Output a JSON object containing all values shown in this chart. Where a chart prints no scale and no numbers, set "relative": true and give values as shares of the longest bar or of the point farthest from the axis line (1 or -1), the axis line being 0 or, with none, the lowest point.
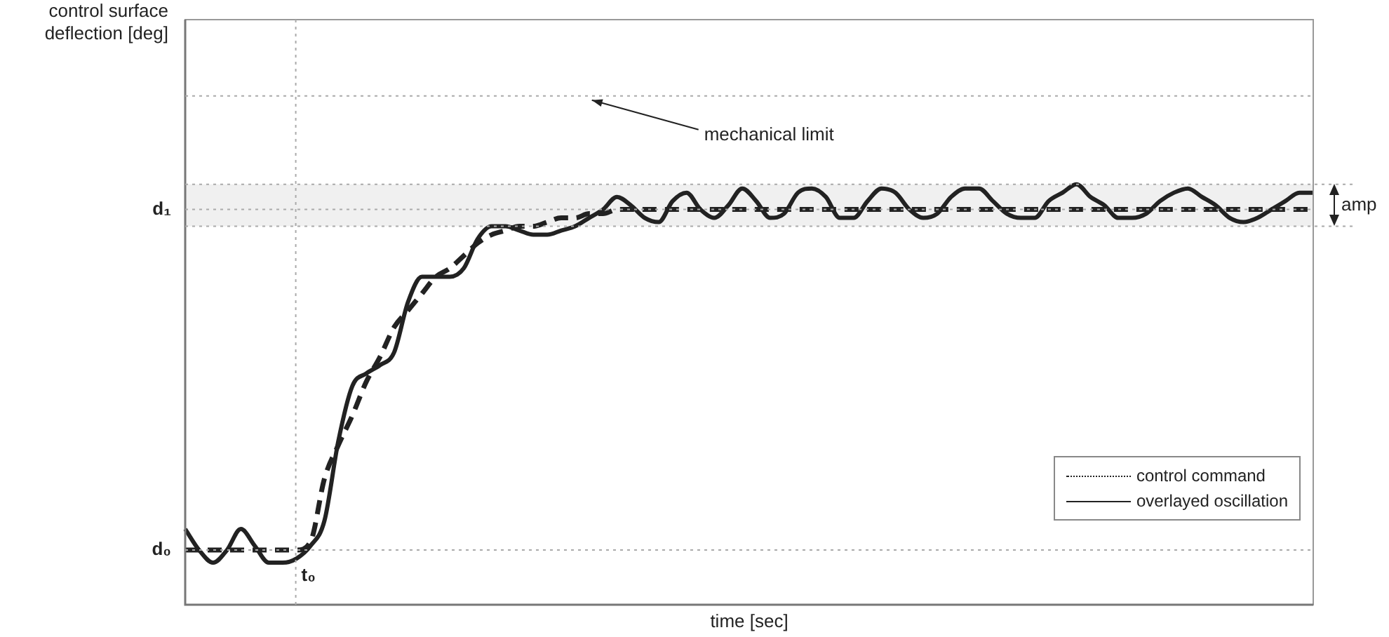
{
  "chart_data": {
    "type": "line",
    "relative": true,
    "xlabel": "time [sec]",
    "legend": "bottom right",
    "marker": "none",
    "categories": [
      null,
      null,
      null,
      null,
      null,
      null,
      null,
      null,
      null,
      null,
      null,
      null,
      null,
      null,
      null,
      null,
      null,
      null,
      null,
      null,
      null,
      null,
      null,
      null,
      null,
      null,
      null,
      null,
      null,
      null,
      null,
      null,
      null,
      null,
      null,
      null,
      null,
      null,
      null,
      null,
      null,
      null,
      null,
      null,
      null,
      null,
      null,
      null,
      null,
      null,
      null,
      null,
      null,
      null,
      null,
      null,
      null,
      null,
      null,
      null,
      null,
      null,
      null,
      null,
      null,
      null,
      null,
      null,
      null,
      null,
      null,
      null,
      null,
      null,
      null,
      null,
      null,
      null,
      null,
      null,
      null,
      null
    ],
    "series": [
      {
        "name": "control command",
        "color": "#222222",
        "line_style": "dashed",
        "values": [
          0.13,
          0.13,
          0.13,
          0.13,
          0.13,
          0.13,
          0.13,
          0.13,
          0.13,
          0.15,
          0.3,
          0.38,
          0.45,
          0.53,
          0.59,
          0.66,
          0.7,
          0.74,
          0.78,
          0.8,
          0.83,
          0.86,
          0.88,
          0.89,
          0.9,
          0.9,
          0.91,
          0.92,
          0.92,
          0.93,
          0.93,
          0.94,
          0.94,
          0.94,
          0.94,
          0.94,
          0.94,
          0.94,
          0.94,
          0.94,
          0.94,
          0.94,
          0.94,
          0.94,
          0.94,
          0.94,
          0.94,
          0.94,
          0.94,
          0.94,
          0.94,
          0.94,
          0.94,
          0.94,
          0.94,
          0.94,
          0.94,
          0.94,
          0.94,
          0.94,
          0.94,
          0.94,
          0.94,
          0.94,
          0.94,
          0.94,
          0.94,
          0.94,
          0.94,
          0.94,
          0.94,
          0.94,
          0.94,
          0.94,
          0.94,
          0.94,
          0.94,
          0.94,
          0.94,
          0.94,
          0.94,
          0.94
        ]
      },
      {
        "name": "overlayed oscillation",
        "color": "#222222",
        "line_style": "solid",
        "values": [
          0.18,
          0.13,
          0.1,
          0.13,
          0.18,
          0.14,
          0.1,
          0.1,
          0.11,
          0.14,
          0.2,
          0.39,
          0.52,
          0.55,
          0.57,
          0.6,
          0.72,
          0.78,
          0.78,
          0.78,
          0.8,
          0.87,
          0.9,
          0.9,
          0.89,
          0.88,
          0.88,
          0.89,
          0.9,
          0.92,
          0.94,
          0.97,
          0.95,
          0.92,
          0.91,
          0.96,
          0.98,
          0.94,
          0.92,
          0.95,
          0.99,
          0.96,
          0.92,
          0.93,
          0.98,
          0.99,
          0.97,
          0.92,
          0.92,
          0.96,
          0.99,
          0.98,
          0.94,
          0.92,
          0.93,
          0.97,
          0.99,
          0.99,
          0.96,
          0.93,
          0.92,
          0.92,
          0.96,
          0.98,
          1,
          0.97,
          0.95,
          0.92,
          0.92,
          0.93,
          0.96,
          0.98,
          0.99,
          0.97,
          0.95,
          0.92,
          0.91,
          0.92,
          0.94,
          0.96,
          0.98,
          0.98
        ]
      }
    ],
    "ref_lines": [
      {
        "axis": "y",
        "value": 0.13,
        "label": "d₀",
        "color": "#aaaaaa",
        "line_style": "dotted"
      },
      {
        "axis": "y",
        "value": 0.94,
        "label": "d₁",
        "color": "#aaaaaa",
        "line_style": "dotted"
      },
      {
        "axis": "y",
        "value": 1.21,
        "label": "mechanical limit",
        "color": "#aaaaaa",
        "line_style": "dotted"
      }
    ],
    "bands": [
      {
        "axis": "y",
        "from": 0.9,
        "to": 1.0,
        "label": "amp",
        "color": "#f0f0f0"
      }
    ],
    "annotations": [
      "control surface deflection [deg]",
      "t₀"
    ]
  }
}
